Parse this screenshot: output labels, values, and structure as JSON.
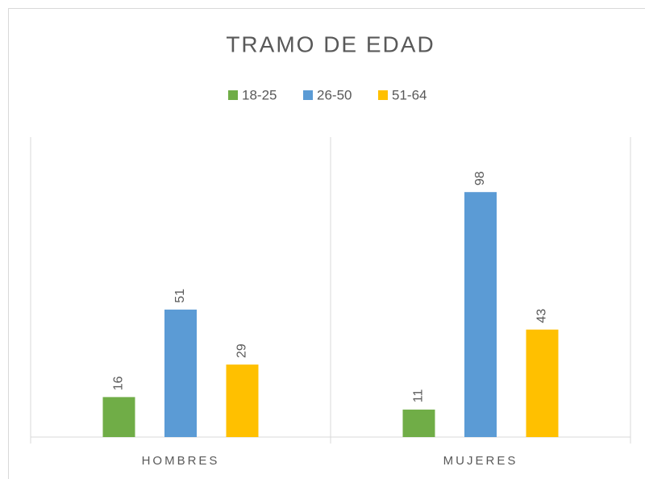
{
  "chart_data": {
    "type": "bar",
    "title": "TRAMO DE EDAD",
    "categories": [
      "HOMBRES",
      "MUJERES"
    ],
    "series": [
      {
        "name": "18-25",
        "color": "#70ad47",
        "values": [
          16,
          11
        ]
      },
      {
        "name": "26-50",
        "color": "#5b9bd5",
        "values": [
          51,
          98
        ]
      },
      {
        "name": "51-64",
        "color": "#ffc000",
        "values": [
          29,
          43
        ]
      }
    ],
    "ylim": [
      0,
      120
    ],
    "legend": "top"
  }
}
